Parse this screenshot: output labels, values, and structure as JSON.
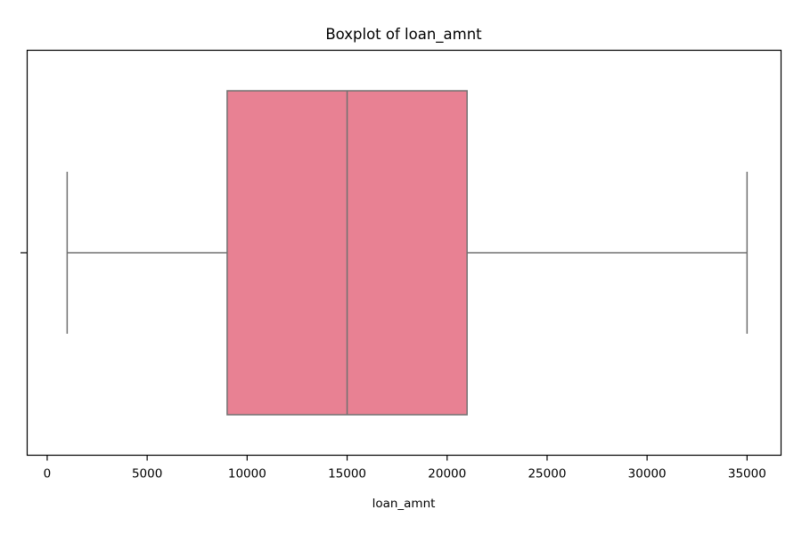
{
  "chart_data": {
    "type": "boxplot",
    "title": "Boxplot of loan_amnt",
    "xlabel": "loan_amnt",
    "ylabel": "",
    "xlim": [
      -1000,
      36700
    ],
    "xticks": [
      0,
      5000,
      10000,
      15000,
      20000,
      25000,
      30000,
      35000
    ],
    "xtick_labels": [
      "0",
      "5000",
      "10000",
      "15000",
      "20000",
      "25000",
      "30000",
      "35000"
    ],
    "series": [
      {
        "whisker_low": 1000,
        "q1": 9000,
        "median": 15000,
        "q3": 21000,
        "whisker_high": 35000
      }
    ],
    "grid": false,
    "colors": {
      "box_fill": "#e88193",
      "line": "#707070",
      "frame": "#000000"
    }
  }
}
